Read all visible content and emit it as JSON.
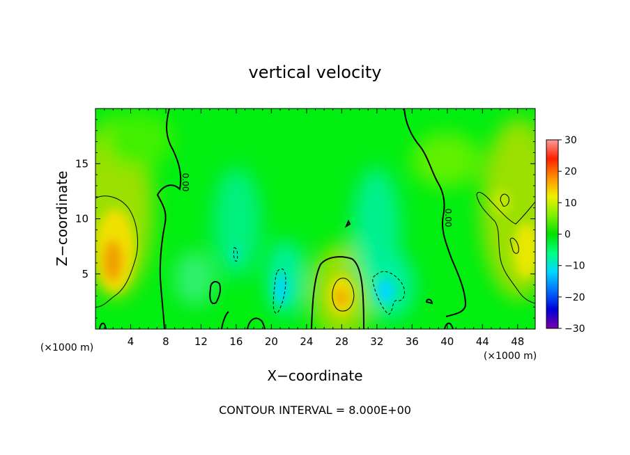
{
  "chart_data": {
    "type": "heatmap",
    "title": "vertical velocity",
    "xlabel": "X−coordinate",
    "ylabel": "Z−coordinate",
    "x_unit_left": "(×1000 m)",
    "x_unit_right": "(×1000 m)",
    "footer": "CONTOUR INTERVAL = 8.000E+00",
    "xlim": [
      0,
      50
    ],
    "ylim": [
      0,
      20
    ],
    "x_ticks": [
      4,
      8,
      12,
      16,
      20,
      24,
      28,
      32,
      36,
      40,
      44,
      48
    ],
    "x_tick_labels": [
      "4",
      "8",
      "12",
      "16",
      "20",
      "24",
      "28",
      "32",
      "36",
      "40",
      "44",
      "48"
    ],
    "y_ticks": [
      5,
      10,
      15
    ],
    "y_tick_labels": [
      "5",
      "10",
      "15"
    ],
    "colorbar": {
      "min": -30,
      "max": 30,
      "ticks": [
        30,
        20,
        10,
        0,
        -10,
        -20,
        -30
      ],
      "tick_labels": [
        "30",
        "20",
        "10",
        "0",
        "−10",
        "−20",
        "−30"
      ],
      "colors": [
        "#7a00a8",
        "#0000d8",
        "#0070ff",
        "#00d8ff",
        "#00ff80",
        "#00e000",
        "#80f000",
        "#f0f000",
        "#ff9000",
        "#ff2000",
        "#ff9a9a"
      ]
    },
    "contour_labels": [
      "0.00",
      "0.00"
    ],
    "features": [
      {
        "x": 2,
        "z": 6,
        "w": 4.5,
        "value": 12
      },
      {
        "x": 47,
        "z": 7,
        "w": 4,
        "value": 8
      },
      {
        "x": 28.5,
        "z": 3,
        "w": 2.3,
        "value": 10
      },
      {
        "x": 21,
        "z": 4,
        "w": 2,
        "value": -8
      },
      {
        "x": 33,
        "z": 4,
        "w": 2,
        "value": -8
      },
      {
        "x": 16,
        "z": 7,
        "w": 1.5,
        "value": -4
      }
    ]
  },
  "colors": {
    "background": "#00f000",
    "axis": "#000000"
  }
}
